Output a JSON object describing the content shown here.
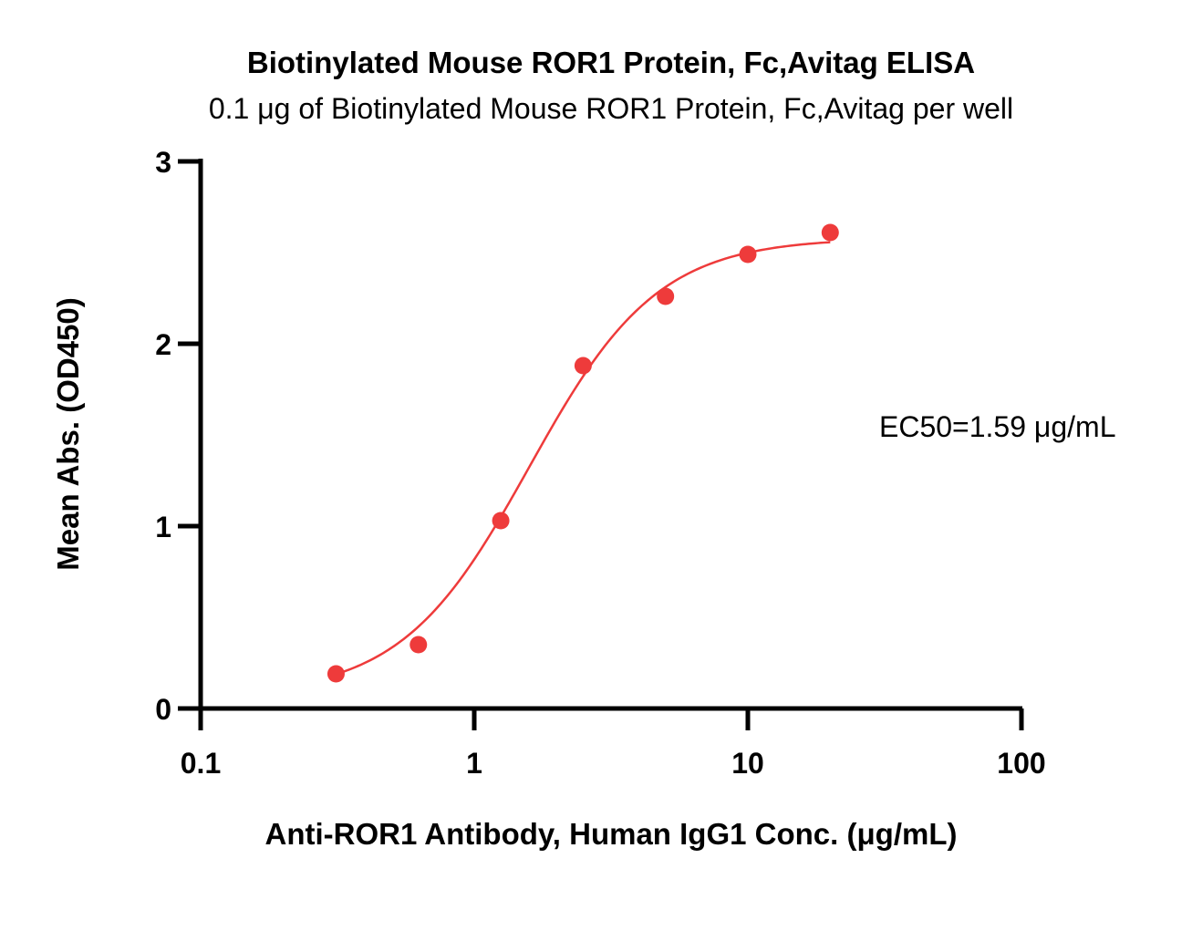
{
  "chart_data": {
    "type": "scatter",
    "title": "Biotinylated Mouse ROR1 Protein, Fc,Avitag ELISA",
    "subtitle": "0.1 μg of Biotinylated Mouse ROR1 Protein, Fc,Avitag per well",
    "xlabel": "Anti-ROR1 Antibody, Human IgG1 Conc. (μg/mL)",
    "ylabel": "Mean Abs. (OD450)",
    "xscale": "log",
    "xlim": [
      0.1,
      100
    ],
    "ylim": [
      0,
      3
    ],
    "xticks": [
      "0.1",
      "1",
      "10",
      "100"
    ],
    "xtick_values": [
      0.1,
      1,
      10,
      100
    ],
    "yticks": [
      "0",
      "1",
      "2",
      "3"
    ],
    "ytick_values": [
      0,
      1,
      2,
      3
    ],
    "grid": false,
    "annotation": "EC50=1.59 μg/mL",
    "series": [
      {
        "x": [
          0.3125,
          0.625,
          1.25,
          2.5,
          5,
          10,
          20
        ],
        "y": [
          0.19,
          0.35,
          1.03,
          1.88,
          2.26,
          2.49,
          2.61
        ],
        "color": "#ee3b3b",
        "marker": "circle"
      }
    ],
    "fit": {
      "model": "4PL",
      "ec50": 1.59,
      "bottom": 0.07,
      "top": 2.58,
      "hill": 1.85,
      "color": "#ee3b3b"
    }
  }
}
